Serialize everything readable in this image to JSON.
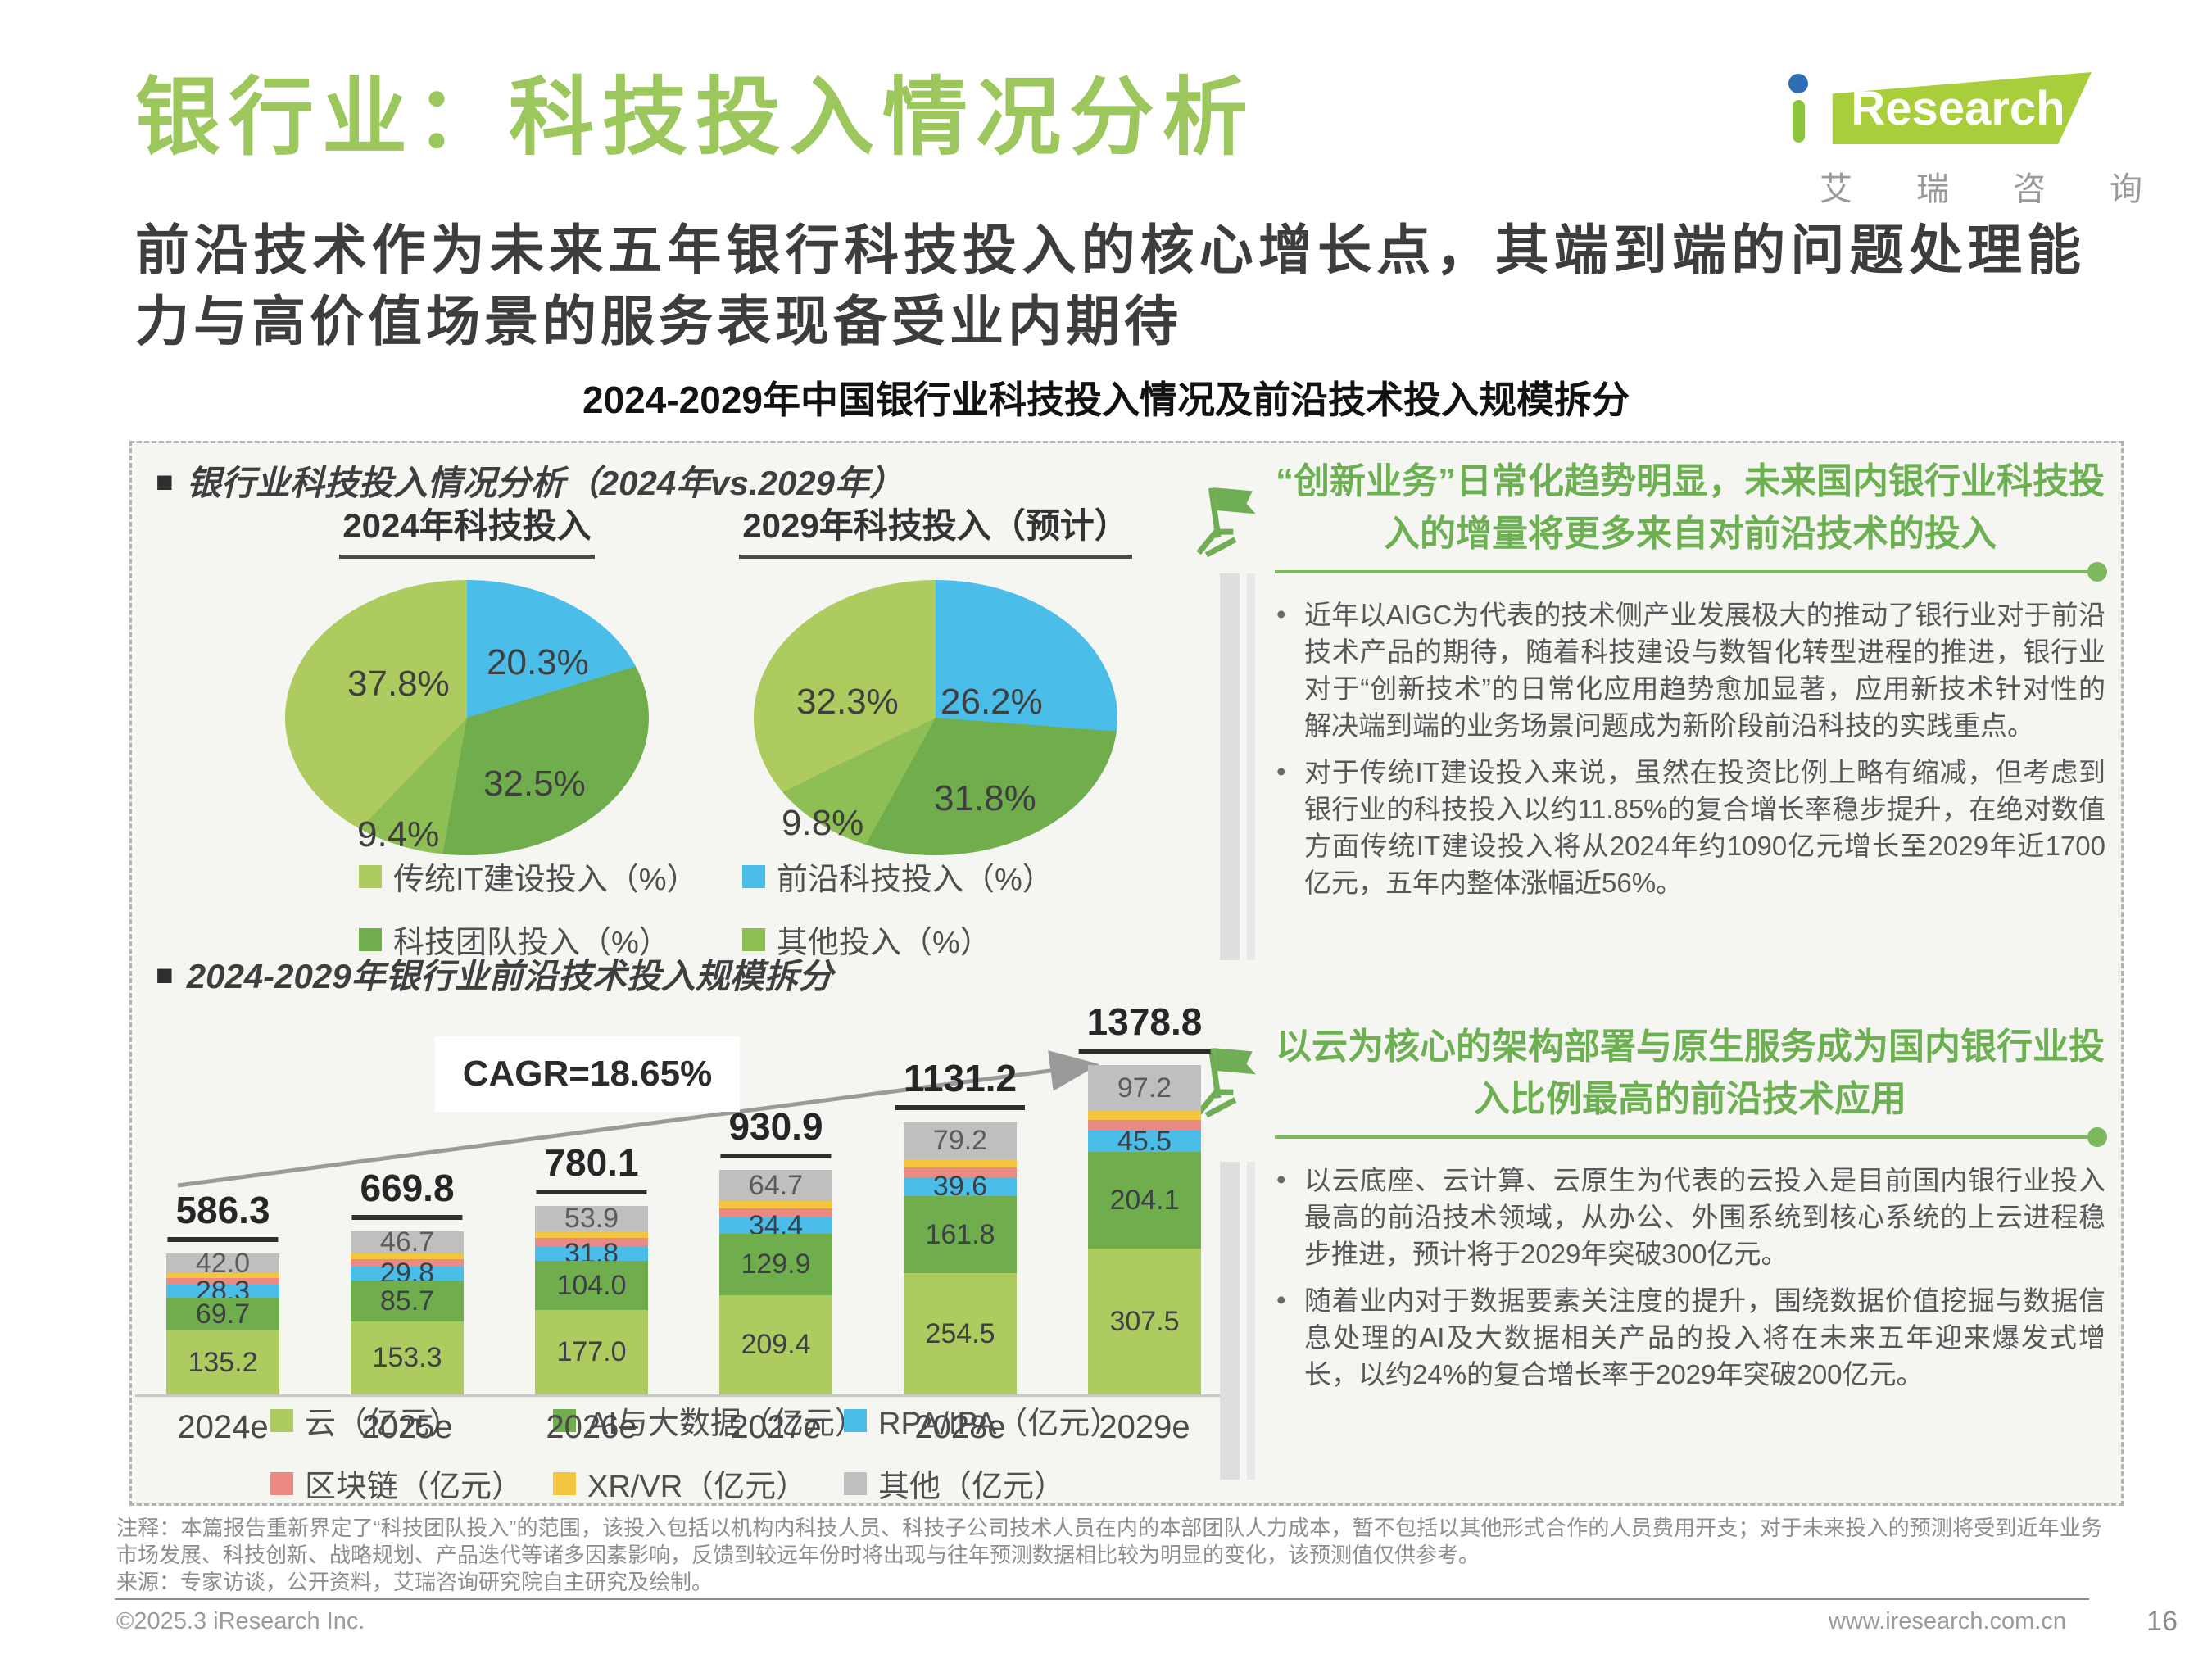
{
  "page": {
    "title": "银行业：科技投入情况分析",
    "subtitle": "前沿技术作为未来五年银行科技投入的核心增长点，其端到端的问题处理能力与高价值场景的服务表现备受业内期待",
    "chart_main_title": "2024-2029年中国银行业科技投入情况及前沿技术投入规模拆分"
  },
  "logo": {
    "brand_i_dot": "blue-dot",
    "brand_rest": "Research",
    "cn": "艾瑞咨询"
  },
  "left": {
    "pie_section_title": "银行业科技投入情况分析（2024年vs.2029年）",
    "bar_section_title": "2024-2029年银行业前沿技术投入规模拆分"
  },
  "pie_legend": [
    {
      "label": "传统IT建设投入（%）",
      "color": "lightGreen"
    },
    {
      "label": "前沿科技投入（%）",
      "color": "blue"
    },
    {
      "label": "科技团队投入（%）",
      "color": "darkGreen"
    },
    {
      "label": "其他投入（%）",
      "color": "midGreen"
    }
  ],
  "right": {
    "insight1": {
      "heading": "“创新业务”日常化趋势明显，未来国内银行业科技投入的增量将更多来自对前沿技术的投入",
      "bullets": [
        "近年以AIGC为代表的技术侧产业发展极大的推动了银行业对于前沿技术产品的期待，随着科技建设与数智化转型进程的推进，银行业对于“创新技术”的日常化应用趋势愈加显著，应用新技术针对性的解决端到端的业务场景问题成为新阶段前沿科技的实践重点。",
        "对于传统IT建设投入来说，虽然在投资比例上略有缩减，但考虑到银行业的科技投入以约11.85%的复合增长率稳步提升，在绝对数值方面传统IT建设投入将从2024年约1090亿元增长至2029年近1700亿元，五年内整体涨幅近56%。"
      ]
    },
    "insight2": {
      "heading": "以云为核心的架构部署与原生服务成为国内银行业投入比例最高的前沿技术应用",
      "bullets": [
        "以云底座、云计算、云原生为代表的云投入是目前国内银行业投入最高的前沿技术领域，从办公、外围系统到核心系统的上云进程稳步推进，预计将于2029年突破300亿元。",
        "随着业内对于数据要素关注度的提升，围绕数据价值挖掘与数据信息处理的AI及大数据相关产品的投入将在未来五年迎来爆发式增长，以约24%的复合增长率于2029年突破200亿元。"
      ]
    }
  },
  "footer": {
    "note_line1": "注释：本篇报告重新界定了“科技团队投入”的范围，该投入包括以机构内科技人员、科技子公司技术人员在内的本部团队人力成本，暂不包括以其他形式合作的人员费用开支；对于未来投入的预测将受到近年业务市场发展、科技创新、战略规划、产品迭代等诸多因素影响，反馈到较远年份时将出现与往年预测数据相比较为明显的变化，该预测值仅供参考。",
    "note_line2": "来源：专家访谈，公开资料，艾瑞咨询研究院自主研究及绘制。",
    "copyright": "©2025.3 iResearch Inc.",
    "website": "www.iresearch.com.cn",
    "page_number": "16"
  },
  "colors": {
    "titleGreen": "#9cc75c",
    "insightGreen": "#6cb052",
    "ruleGreen": "#7cb85c",
    "flagGreen": "#6fae55",
    "lightGreen": "#aecb5f",
    "darkGreen": "#70ad4d",
    "midGreen": "#8dbf55",
    "blue": "#4bbde9",
    "red": "#ea8a83",
    "yellow": "#f4c63f",
    "gray": "#bfbfbf"
  },
  "chart_data": [
    {
      "type": "pie",
      "title": "2024年科技投入",
      "legend_position": "bottom",
      "segments": [
        {
          "name": "前沿科技投入",
          "value": 20.3,
          "label": "20.3%",
          "color": "blue"
        },
        {
          "name": "科技团队投入",
          "value": 32.5,
          "label": "32.5%",
          "color": "darkGreen"
        },
        {
          "name": "其他投入",
          "value": 9.4,
          "label": "9.4%",
          "color": "midGreen"
        },
        {
          "name": "传统IT建设投入",
          "value": 37.8,
          "label": "37.8%",
          "color": "lightGreen"
        }
      ]
    },
    {
      "type": "pie",
      "title": "2029年科技投入（预计）",
      "legend_position": "bottom",
      "segments": [
        {
          "name": "前沿科技投入",
          "value": 26.2,
          "label": "26.2%",
          "color": "blue"
        },
        {
          "name": "科技团队投入",
          "value": 31.8,
          "label": "31.8%",
          "color": "darkGreen"
        },
        {
          "name": "其他投入",
          "value": 9.8,
          "label": "9.8%",
          "color": "midGreen"
        },
        {
          "name": "传统IT建设投入",
          "value": 32.3,
          "label": "32.3%",
          "color": "lightGreen"
        }
      ]
    },
    {
      "type": "bar",
      "stacked": true,
      "unit": "亿元",
      "cagr_label": "CAGR=18.65%",
      "categories": [
        "2024e",
        "2025e",
        "2026e",
        "2027e",
        "2028e",
        "2029e"
      ],
      "totals": [
        586.3,
        669.8,
        780.1,
        930.9,
        1131.2,
        1378.8
      ],
      "series": [
        {
          "name": "云（亿元）",
          "key": "cloud",
          "color": "lightGreen",
          "values": [
            135.2,
            153.3,
            177.0,
            209.4,
            254.5,
            307.5
          ]
        },
        {
          "name": "AI与大数据（亿元）",
          "key": "ai-bigdata",
          "color": "darkGreen",
          "values": [
            69.7,
            85.7,
            104.0,
            129.9,
            161.8,
            204.1
          ]
        },
        {
          "name": "RPA/IPA（亿元）",
          "key": "rpa-ipa",
          "color": "blue",
          "values": [
            28.3,
            29.8,
            31.8,
            34.4,
            39.6,
            45.5
          ]
        },
        {
          "name": "区块链（亿元）",
          "key": "blockchain",
          "color": "red",
          "values": [
            null,
            null,
            null,
            null,
            null,
            null
          ]
        },
        {
          "name": "XR/VR（亿元）",
          "key": "xr-vr",
          "color": "yellow",
          "values": [
            null,
            null,
            null,
            null,
            null,
            null
          ]
        },
        {
          "name": "其他（亿元）",
          "key": "other",
          "color": "gray",
          "values": [
            42.0,
            46.7,
            53.9,
            64.7,
            79.2,
            97.2
          ]
        }
      ]
    }
  ]
}
